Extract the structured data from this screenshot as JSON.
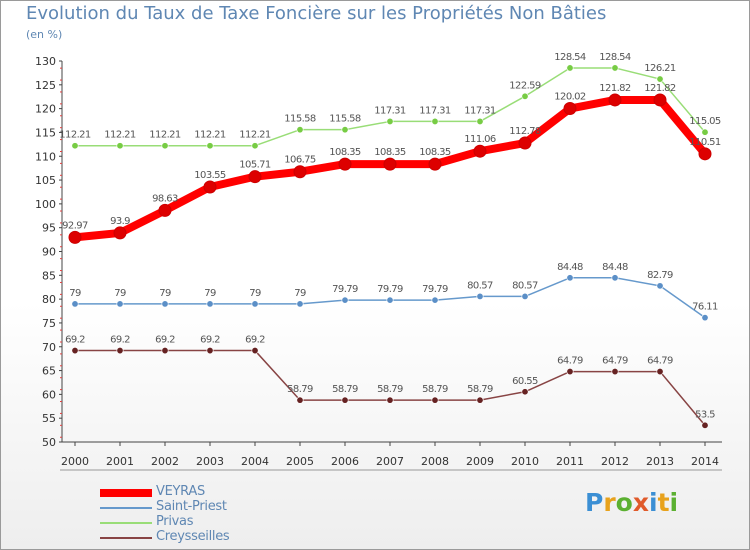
{
  "title": "Evolution du Taux de Taxe Foncière sur les Propriétés Non Bâties",
  "unit": "(en %)",
  "chart_data": {
    "type": "line",
    "title": "Evolution du Taux de Taxe Foncière sur les Propriétés Non Bâties",
    "ylabel": "(en %)",
    "xlabel": "",
    "ylim": [
      50,
      130
    ],
    "yticks": [
      50,
      55,
      60,
      65,
      70,
      75,
      80,
      85,
      90,
      95,
      100,
      105,
      110,
      115,
      120,
      125,
      130
    ],
    "grid": false,
    "categories": [
      "2000",
      "2001",
      "2002",
      "2003",
      "2004",
      "2005",
      "2006",
      "2007",
      "2008",
      "2009",
      "2010",
      "2011",
      "2012",
      "2013",
      "2014"
    ],
    "series": [
      {
        "name": "VEYRAS",
        "color": "#ff0000",
        "marker": "#dd0000",
        "values": [
          92.97,
          93.9,
          98.63,
          103.55,
          105.71,
          106.75,
          108.35,
          108.35,
          108.35,
          111.06,
          112.78,
          120.02,
          121.82,
          121.82,
          110.51
        ]
      },
      {
        "name": "Saint-Priest",
        "color": "#6699cc",
        "marker": "#5b8fc7",
        "values": [
          79,
          79,
          79,
          79,
          79,
          79,
          79.79,
          79.79,
          79.79,
          80.57,
          80.57,
          84.48,
          84.48,
          82.79,
          76.11
        ]
      },
      {
        "name": "Privas",
        "color": "#99dd77",
        "marker": "#77cc44",
        "values": [
          112.21,
          112.21,
          112.21,
          112.21,
          112.21,
          115.58,
          115.58,
          117.31,
          117.31,
          117.31,
          122.59,
          128.54,
          128.54,
          126.21,
          115.05
        ]
      },
      {
        "name": "Creysseilles",
        "color": "#884444",
        "marker": "#662222",
        "values": [
          69.2,
          69.2,
          69.2,
          69.2,
          69.2,
          58.79,
          58.79,
          58.79,
          58.79,
          58.79,
          60.55,
          64.79,
          64.79,
          64.79,
          53.5
        ]
      }
    ]
  },
  "legend": [
    {
      "label": "VEYRAS",
      "color": "#ff0000"
    },
    {
      "label": "Saint-Priest",
      "color": "#6699cc"
    },
    {
      "label": "Privas",
      "color": "#99dd77"
    },
    {
      "label": "Creysseilles",
      "color": "#884444"
    }
  ],
  "logo": {
    "letters": [
      "P",
      "r",
      "o",
      "x",
      "i",
      "t",
      "i"
    ],
    "colors": [
      "#3b8fd4",
      "#e8a21c",
      "#5bb031",
      "#e05a2a",
      "#3b8fd4",
      "#e8a21c",
      "#5bb031"
    ]
  }
}
